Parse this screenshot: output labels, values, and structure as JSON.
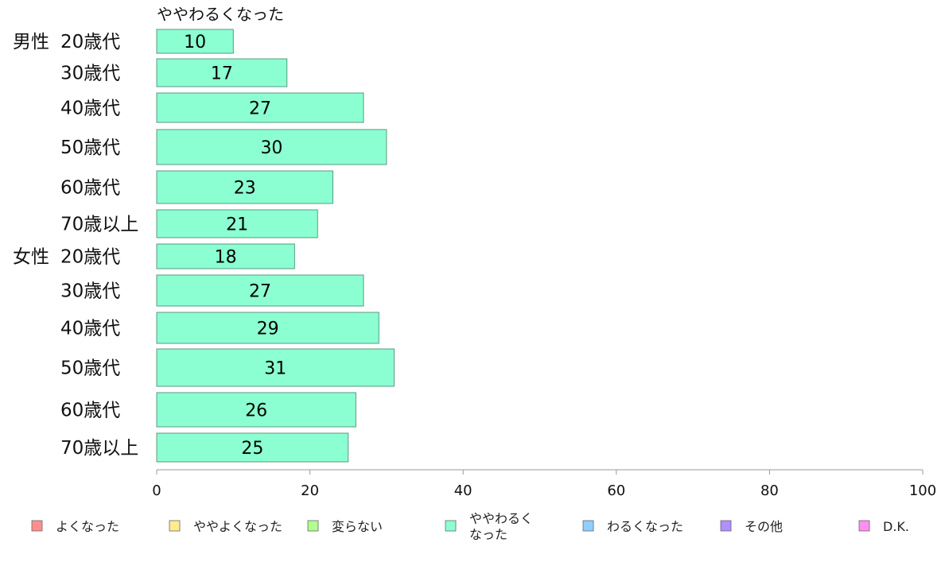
{
  "chart_data": {
    "type": "bar",
    "orientation": "horizontal",
    "title": "ややわるくなった",
    "groups": [
      {
        "name": "男性",
        "categories": [
          "20歳代",
          "30歳代",
          "40歳代",
          "50歳代",
          "60歳代",
          "70歳以上"
        ],
        "values": [
          10,
          17,
          27,
          30,
          23,
          21
        ]
      },
      {
        "name": "女性",
        "categories": [
          "20歳代",
          "30歳代",
          "40歳代",
          "50歳代",
          "60歳代",
          "70歳以上"
        ],
        "values": [
          18,
          27,
          29,
          31,
          26,
          25
        ]
      }
    ],
    "xlim": [
      0,
      100
    ],
    "xticks": [
      0,
      20,
      40,
      60,
      80,
      100
    ],
    "grid": false,
    "bar_color": "#8cffd2",
    "legend_placement": "bottom",
    "legend": [
      {
        "lines": [
          "よくなった"
        ],
        "color": "#ff8f8f"
      },
      {
        "lines": [
          "ややよくなった"
        ],
        "color": "#ffec8f"
      },
      {
        "lines": [
          "変らない"
        ],
        "color": "#b0ff8f"
      },
      {
        "lines": [
          "ややわるく",
          "なった"
        ],
        "color": "#8cffd2"
      },
      {
        "lines": [
          "わるくなった"
        ],
        "color": "#8fcfff"
      },
      {
        "lines": [
          "その他"
        ],
        "color": "#b08fff"
      },
      {
        "lines": [
          "D.K."
        ],
        "color": "#ff8ff0"
      }
    ]
  }
}
